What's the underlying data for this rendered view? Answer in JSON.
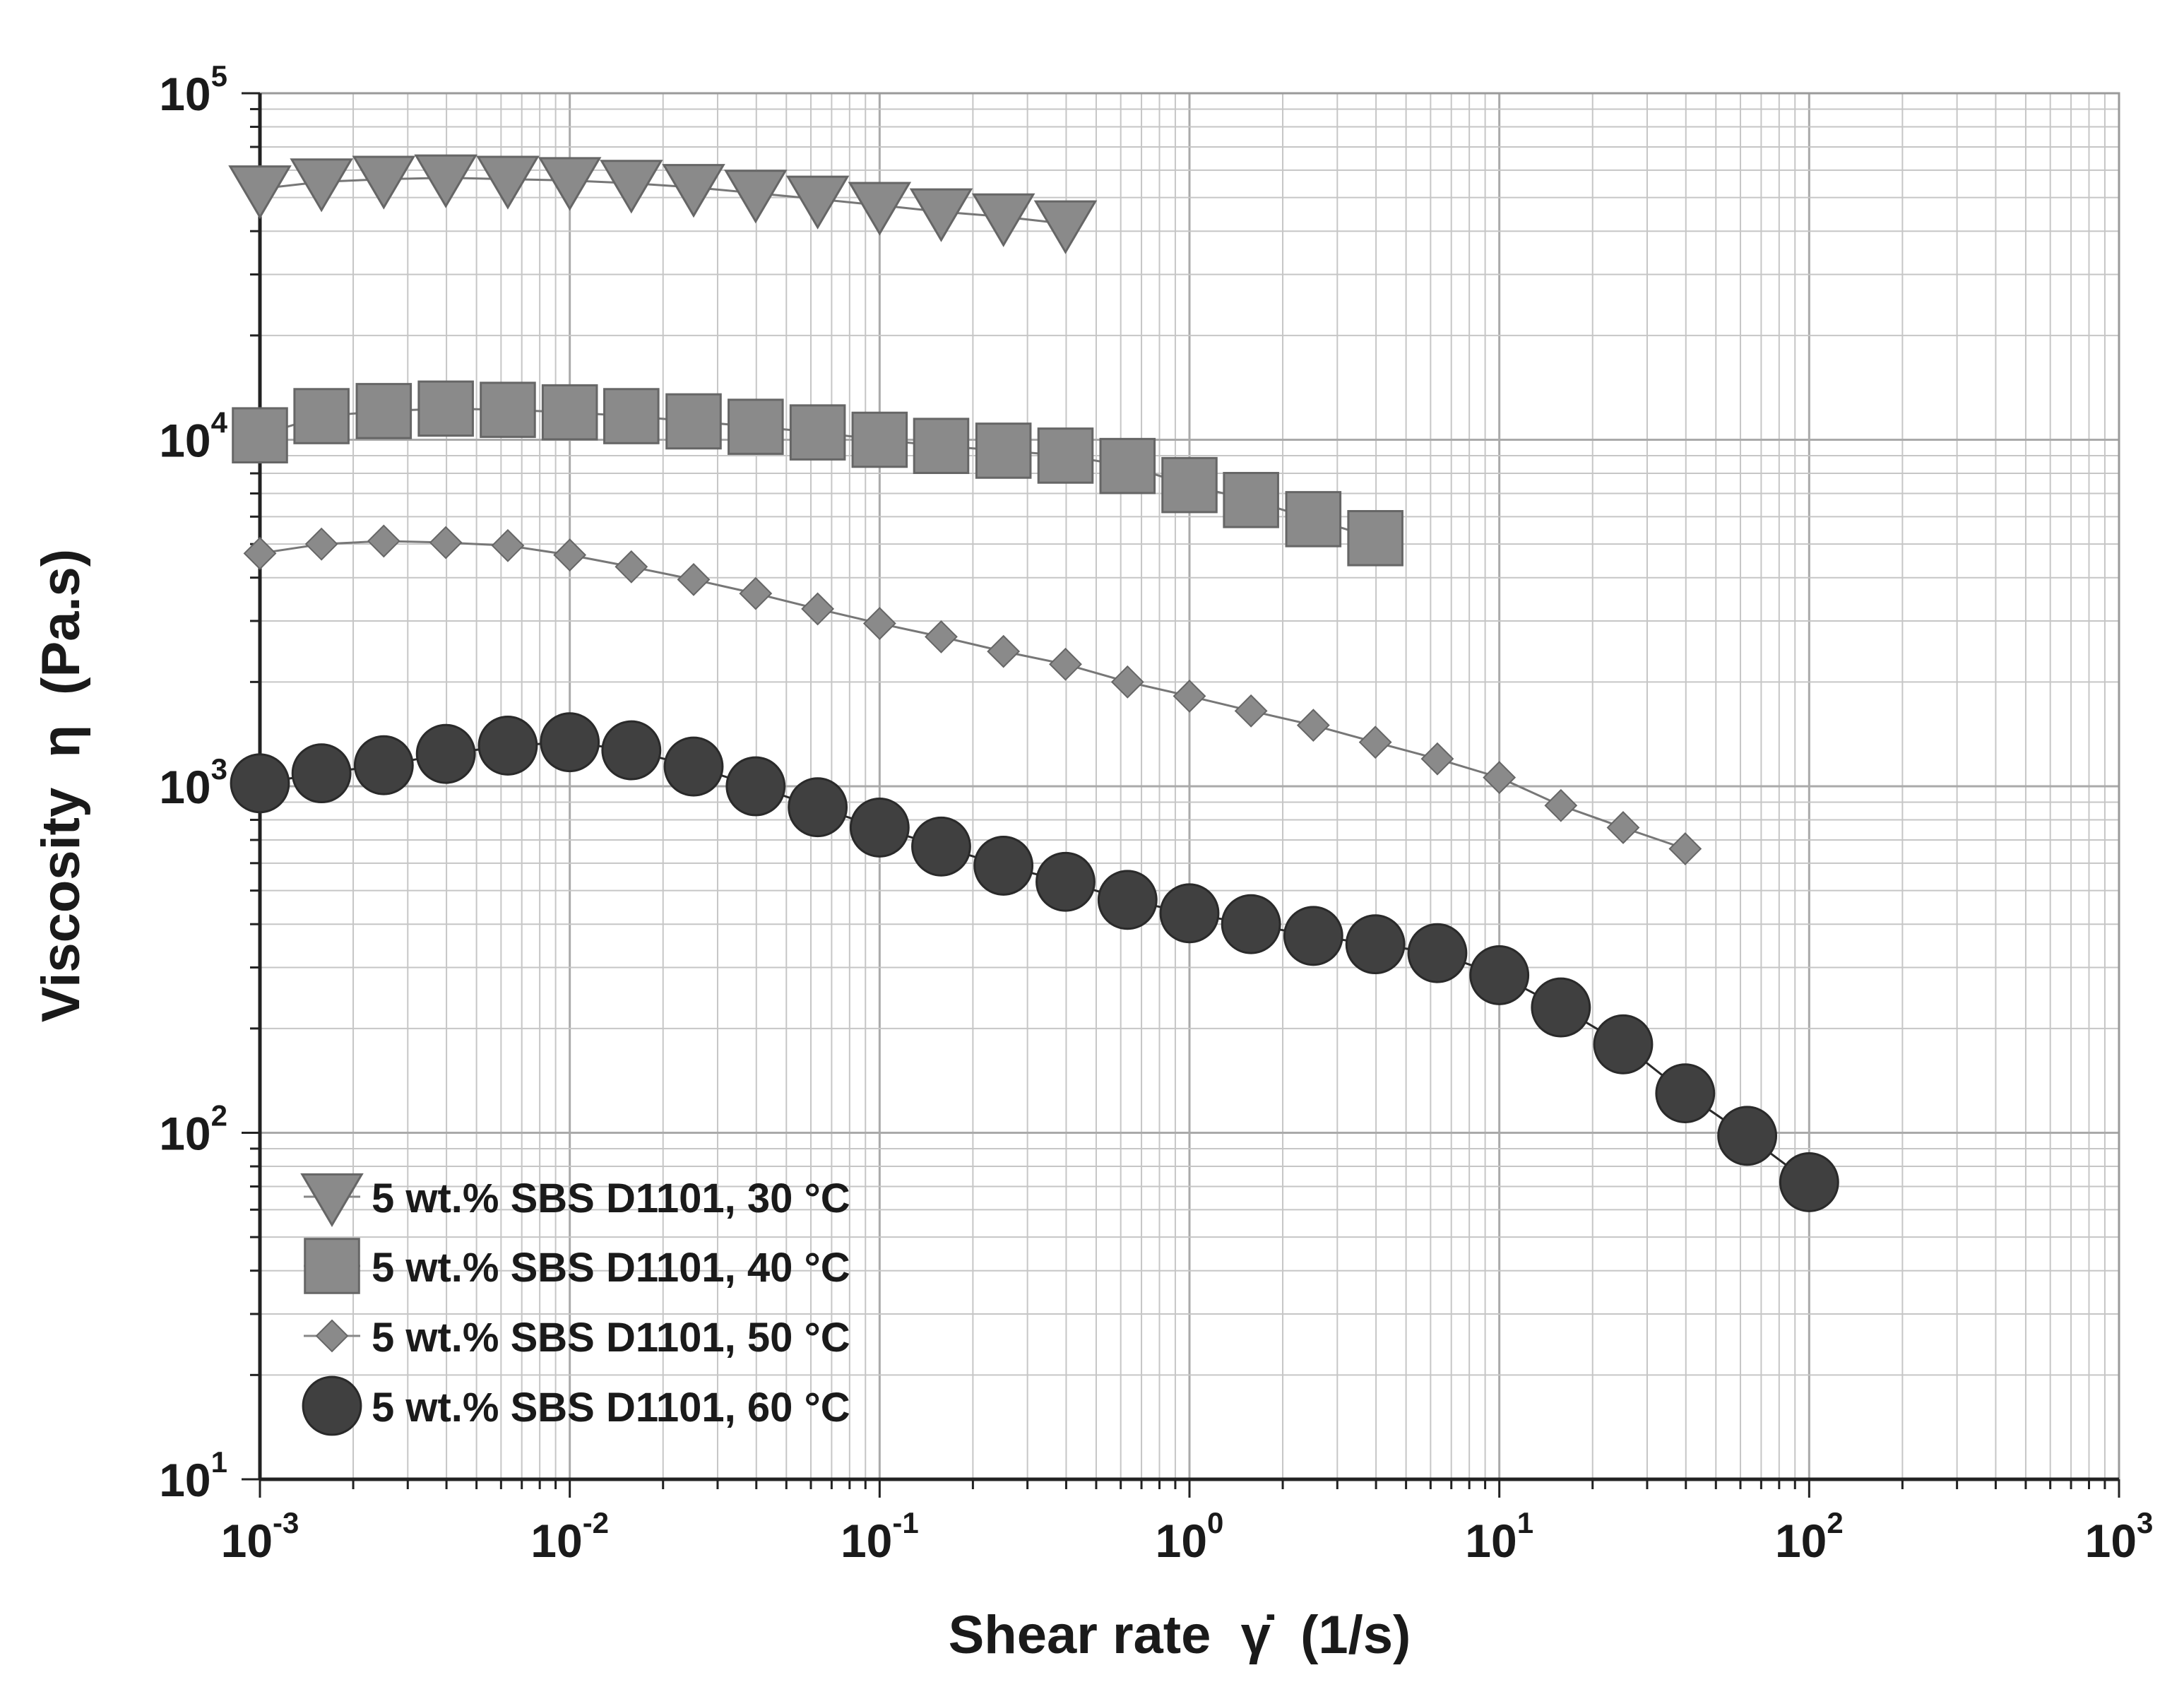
{
  "chart_data": {
    "type": "line",
    "xscale": "log",
    "yscale": "log",
    "xlim": [
      0.001,
      1000
    ],
    "ylim": [
      10,
      100000
    ],
    "grid": true,
    "xlabel": "Shear rate  γ̇  (1/s)",
    "ylabel": "Viscosity  η  (Pa.s)",
    "x_ticks": [
      {
        "base": "10",
        "exp": "-3"
      },
      {
        "base": "10",
        "exp": "-2"
      },
      {
        "base": "10",
        "exp": "-1"
      },
      {
        "base": "10",
        "exp": "0"
      },
      {
        "base": "10",
        "exp": "1"
      },
      {
        "base": "10",
        "exp": "2"
      },
      {
        "base": "10",
        "exp": "3"
      }
    ],
    "y_ticks": [
      {
        "base": "10",
        "exp": "1"
      },
      {
        "base": "10",
        "exp": "2"
      },
      {
        "base": "10",
        "exp": "3"
      },
      {
        "base": "10",
        "exp": "4"
      },
      {
        "base": "10",
        "exp": "5"
      }
    ],
    "legend_position": "bottom-left",
    "series": [
      {
        "name": "5 wt.% SBS D1101, 30 °C",
        "marker": "triangle-down",
        "color": "#8a8a8a",
        "x": [
          0.001,
          0.00158,
          0.00251,
          0.00398,
          0.00631,
          0.01,
          0.0158,
          0.0251,
          0.0398,
          0.0631,
          0.1,
          0.158,
          0.251,
          0.398
        ],
        "y": [
          53000,
          55500,
          56500,
          57000,
          56500,
          56000,
          55000,
          53500,
          51500,
          49500,
          47500,
          45500,
          44000,
          42000
        ]
      },
      {
        "name": "5 wt.% SBS D1101, 40 °C",
        "marker": "square",
        "color": "#8a8a8a",
        "x": [
          0.001,
          0.00158,
          0.00251,
          0.00398,
          0.00631,
          0.01,
          0.0158,
          0.0251,
          0.0398,
          0.0631,
          0.1,
          0.158,
          0.251,
          0.398,
          0.631,
          1.0,
          1.58,
          2.51,
          3.98
        ],
        "y": [
          10300,
          11700,
          12100,
          12300,
          12200,
          12000,
          11700,
          11300,
          10900,
          10500,
          10000,
          9600,
          9300,
          9000,
          8400,
          7400,
          6700,
          5900,
          5200
        ]
      },
      {
        "name": "5 wt.% SBS D1101, 50 °C",
        "marker": "diamond",
        "color": "#8a8a8a",
        "x": [
          0.001,
          0.00158,
          0.00251,
          0.00398,
          0.00631,
          0.01,
          0.0158,
          0.0251,
          0.0398,
          0.0631,
          0.1,
          0.158,
          0.251,
          0.398,
          0.631,
          1.0,
          1.58,
          2.51,
          3.98,
          6.31,
          10,
          15.8,
          25.1,
          39.8
        ],
        "y": [
          4700,
          5000,
          5100,
          5050,
          4950,
          4650,
          4300,
          3950,
          3600,
          3250,
          2950,
          2700,
          2450,
          2250,
          2000,
          1820,
          1650,
          1500,
          1340,
          1200,
          1060,
          880,
          760,
          660
        ]
      },
      {
        "name": "5 wt.% SBS D1101, 60 °C",
        "marker": "circle",
        "color": "#404040",
        "x": [
          0.001,
          0.00158,
          0.00251,
          0.00398,
          0.00631,
          0.01,
          0.0158,
          0.0251,
          0.0398,
          0.0631,
          0.1,
          0.158,
          0.251,
          0.398,
          0.631,
          1.0,
          1.58,
          2.51,
          3.98,
          6.31,
          10,
          15.8,
          25.1,
          39.8,
          63.1,
          100
        ],
        "y": [
          1020,
          1090,
          1150,
          1240,
          1310,
          1340,
          1270,
          1140,
          1000,
          870,
          760,
          670,
          590,
          530,
          470,
          430,
          400,
          370,
          350,
          330,
          285,
          230,
          180,
          130,
          98,
          72
        ]
      }
    ]
  }
}
